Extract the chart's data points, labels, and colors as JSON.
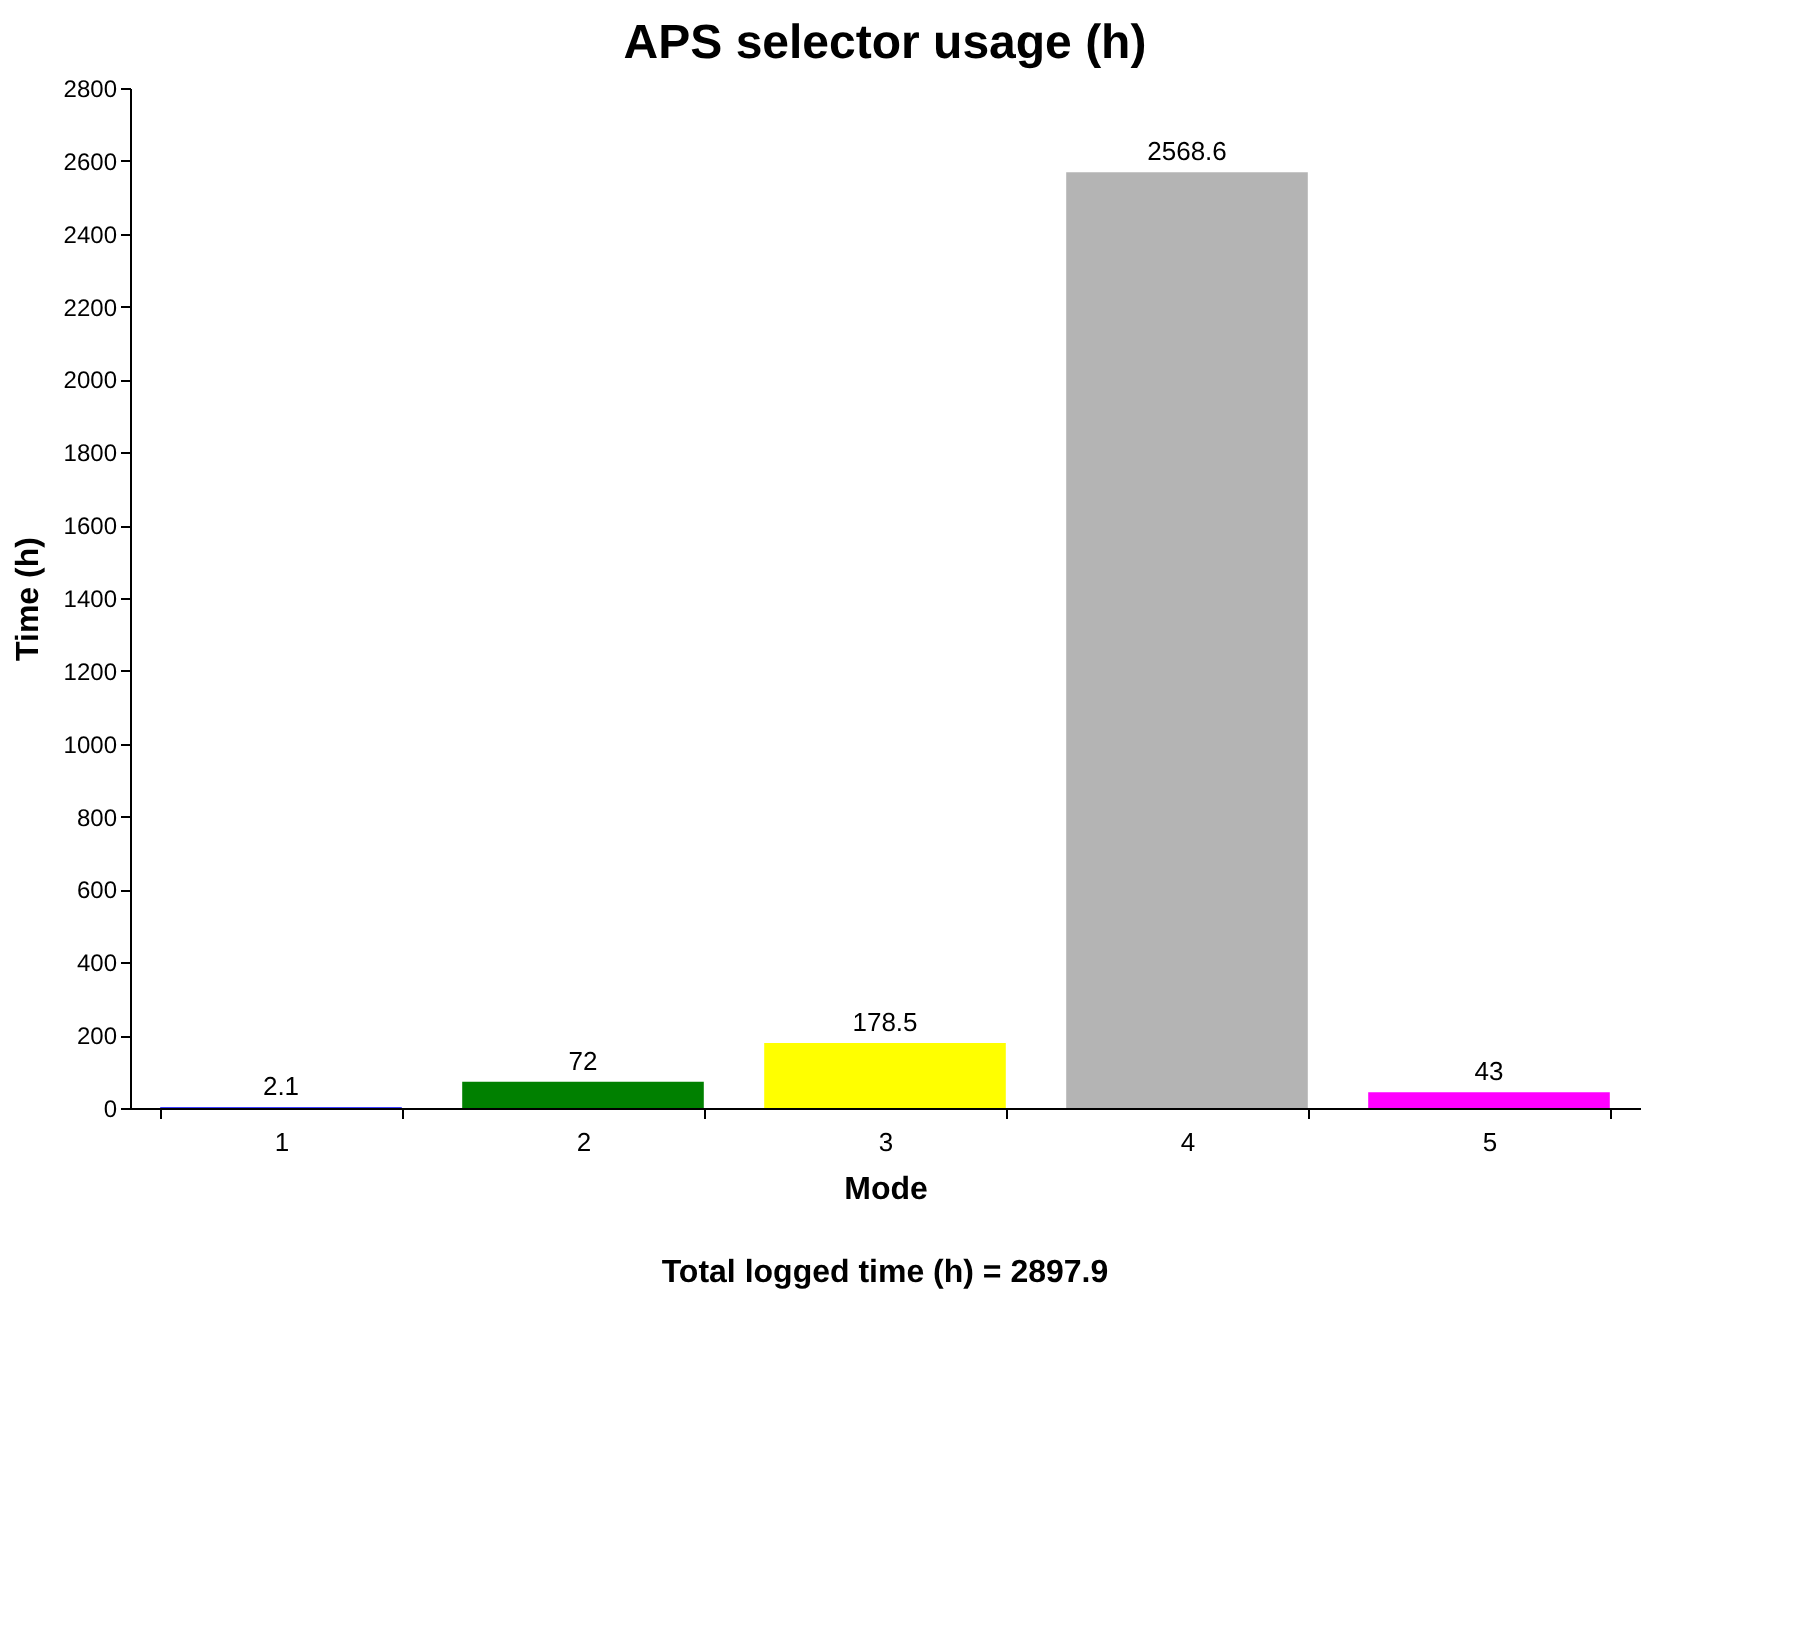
{
  "chart_data": {
    "type": "bar",
    "title": "APS selector usage (h)",
    "xlabel": "Mode",
    "ylabel": "Time (h)",
    "categories": [
      "1",
      "2",
      "3",
      "4",
      "5"
    ],
    "values": [
      2.1,
      72,
      178.5,
      2568.6,
      43
    ],
    "colors": [
      "#0000ff",
      "#008000",
      "#ffff00",
      "#b4b4b4",
      "#ff00ff"
    ],
    "ylim": [
      0,
      2800
    ],
    "yticks": [
      0,
      200,
      400,
      600,
      800,
      1000,
      1200,
      1400,
      1600,
      1800,
      2000,
      2200,
      2400,
      2600,
      2800
    ],
    "grid": false,
    "data_labels": true,
    "annotations": [
      "Total logged time (h) = 2897.9"
    ]
  }
}
